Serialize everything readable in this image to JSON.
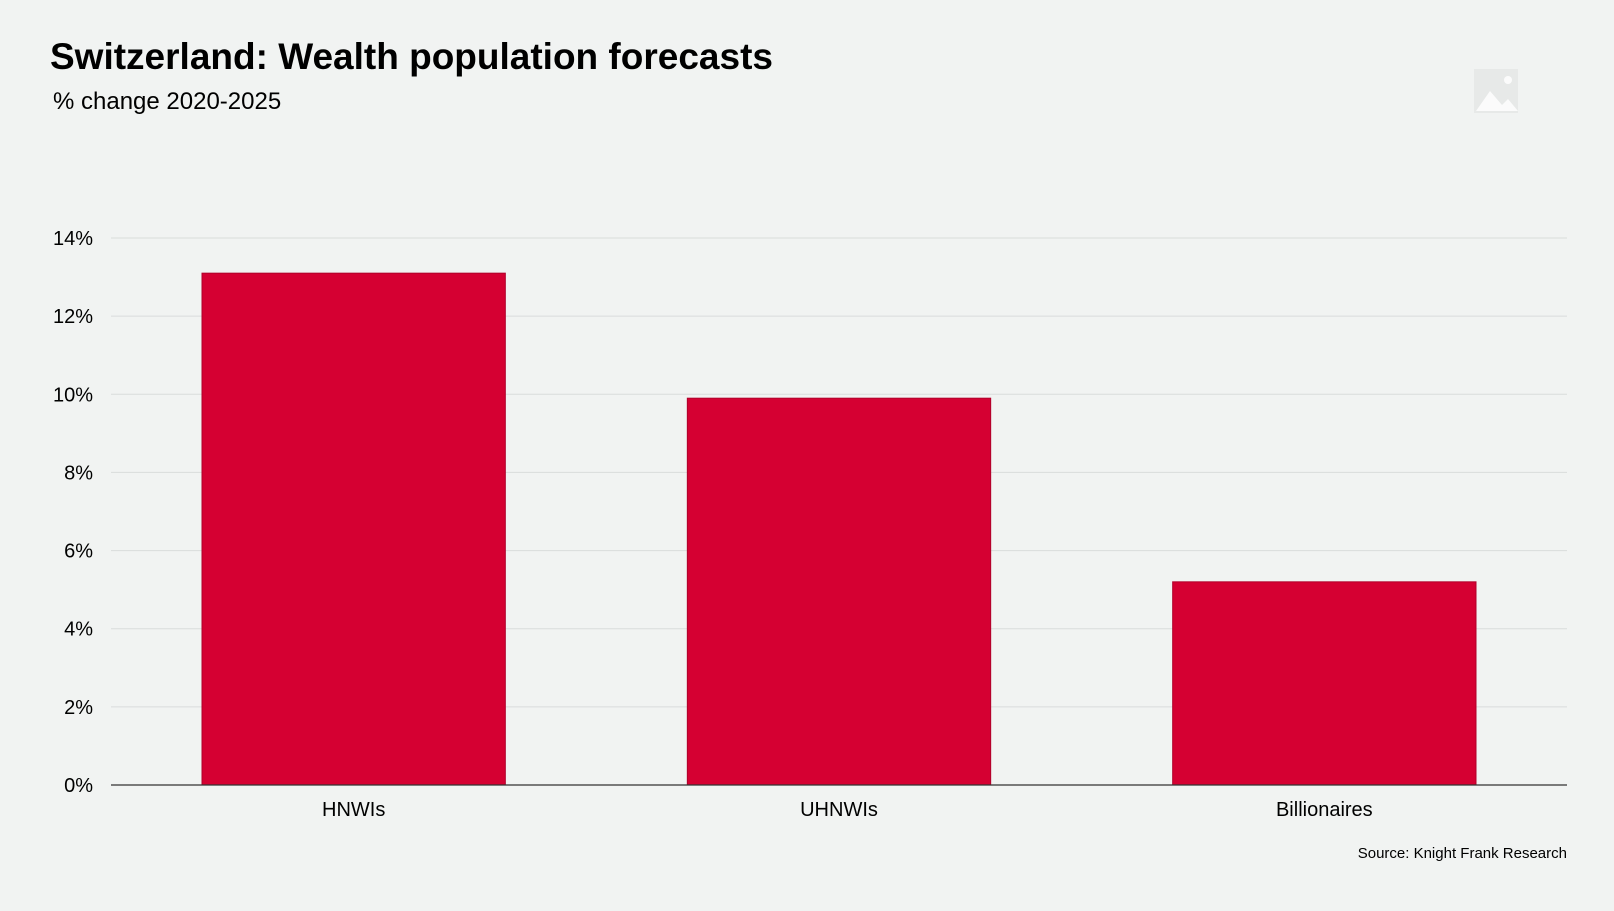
{
  "header": {
    "title": "Switzerland: Wealth population forecasts",
    "subtitle": "% change 2020-2025"
  },
  "footer": {
    "source": "Source: Knight Frank Research"
  },
  "icons": {
    "corner": "diamond-icon",
    "placeholder": "image-placeholder-icon"
  },
  "colors": {
    "bar": "#d50032",
    "background": "#f1f3f2",
    "gridline": "#d9dcdb",
    "axis": "#333333"
  },
  "chart_data": {
    "type": "bar",
    "title": "Switzerland: Wealth population forecasts",
    "subtitle": "% change 2020-2025",
    "categories": [
      "HNWIs",
      "UHNWIs",
      "Billionaires"
    ],
    "values": [
      13.1,
      9.9,
      5.2
    ],
    "ylim": [
      0,
      14
    ],
    "yticks": [
      0,
      2,
      4,
      6,
      8,
      10,
      12,
      14
    ],
    "ytick_labels": [
      "0%",
      "2%",
      "4%",
      "6%",
      "8%",
      "10%",
      "12%",
      "14%"
    ],
    "xlabel": "",
    "ylabel": "",
    "grid": true,
    "legend": "none"
  }
}
